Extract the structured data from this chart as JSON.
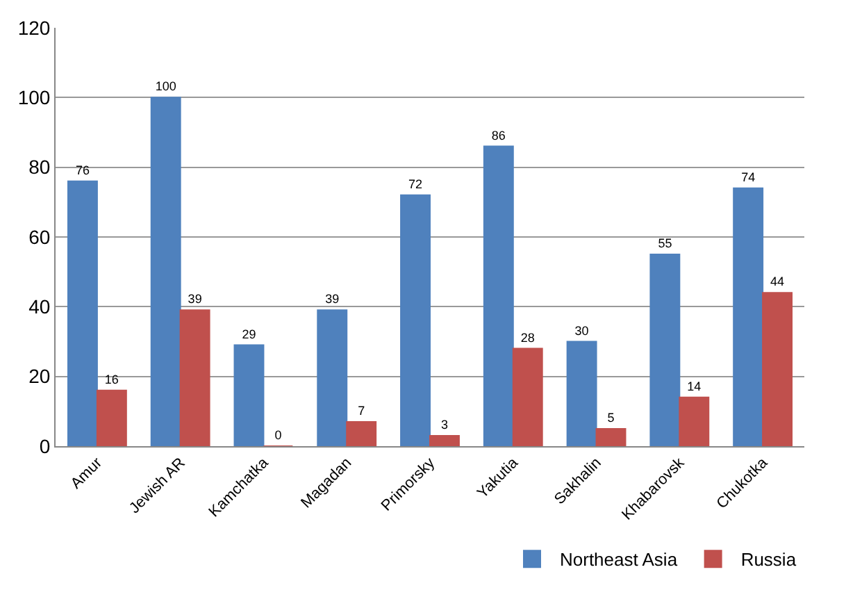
{
  "chart_data": {
    "type": "bar",
    "categories": [
      "Amur",
      "Jewish AR",
      "Kamchatka",
      "Magadan",
      "Primorsky",
      "Yakutia",
      "Sakhalin",
      "Khabarovsk",
      "Chukotka"
    ],
    "series": [
      {
        "name": "Northeast Asia",
        "color": "#4f81bd",
        "values": [
          76,
          100,
          29,
          39,
          72,
          86,
          30,
          55,
          74
        ]
      },
      {
        "name": "Russia",
        "color": "#c0504d",
        "values": [
          16,
          39,
          0,
          7,
          3,
          28,
          5,
          14,
          44
        ]
      }
    ],
    "ylim": [
      0,
      120
    ],
    "yticks": [
      0,
      20,
      40,
      60,
      80,
      100,
      120
    ],
    "grid": "y",
    "legend": "bottom right",
    "data_labels": true
  }
}
